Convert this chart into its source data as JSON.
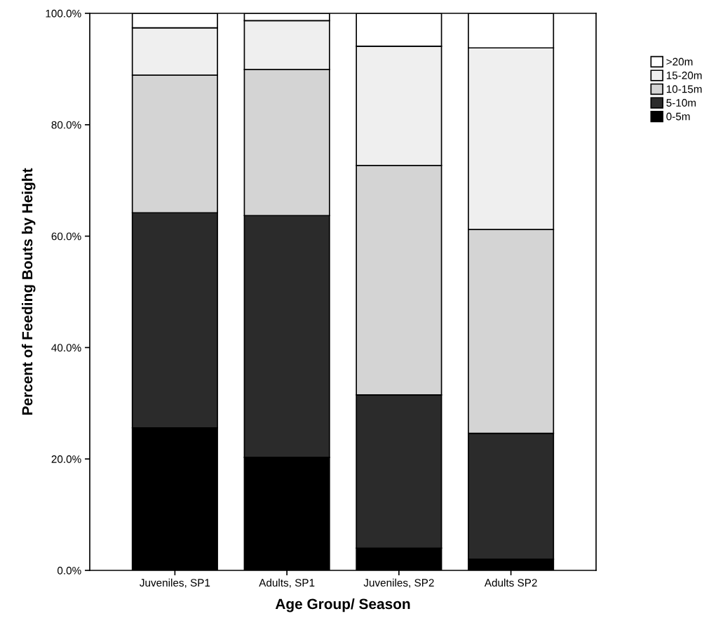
{
  "chart_data": {
    "type": "bar",
    "stacked": true,
    "xlabel": "Age Group/ Season",
    "ylabel": "Percent of Feeding Bouts by Height",
    "categories": [
      "Juveniles, SP1",
      "Adults, SP1",
      "Juveniles, SP2",
      "Adults SP2"
    ],
    "series": [
      {
        "name": "0-5m",
        "color": "#000000",
        "values": [
          25.6,
          20.3,
          4.0,
          2.0
        ]
      },
      {
        "name": "5-10m",
        "color": "#2b2b2b",
        "values": [
          38.6,
          43.4,
          27.5,
          22.6
        ]
      },
      {
        "name": "10-15m",
        "color": "#d4d4d4",
        "values": [
          24.7,
          26.2,
          41.2,
          36.6
        ]
      },
      {
        "name": "15-20m",
        "color": "#efefef",
        "values": [
          8.5,
          8.8,
          21.4,
          32.6
        ]
      },
      {
        "name": ">20m",
        "color": "#ffffff",
        "values": [
          2.6,
          1.3,
          5.9,
          6.2
        ]
      }
    ],
    "ylim": [
      0,
      100
    ],
    "yticks": [
      {
        "value": 0,
        "label": "0.0%"
      },
      {
        "value": 20,
        "label": "20.0%"
      },
      {
        "value": 40,
        "label": "40.0%"
      },
      {
        "value": 60,
        "label": "60.0%"
      },
      {
        "value": 80,
        "label": "80.0%"
      },
      {
        "value": 100,
        "label": "100.0%"
      }
    ],
    "grid": false,
    "legend": "top right"
  }
}
